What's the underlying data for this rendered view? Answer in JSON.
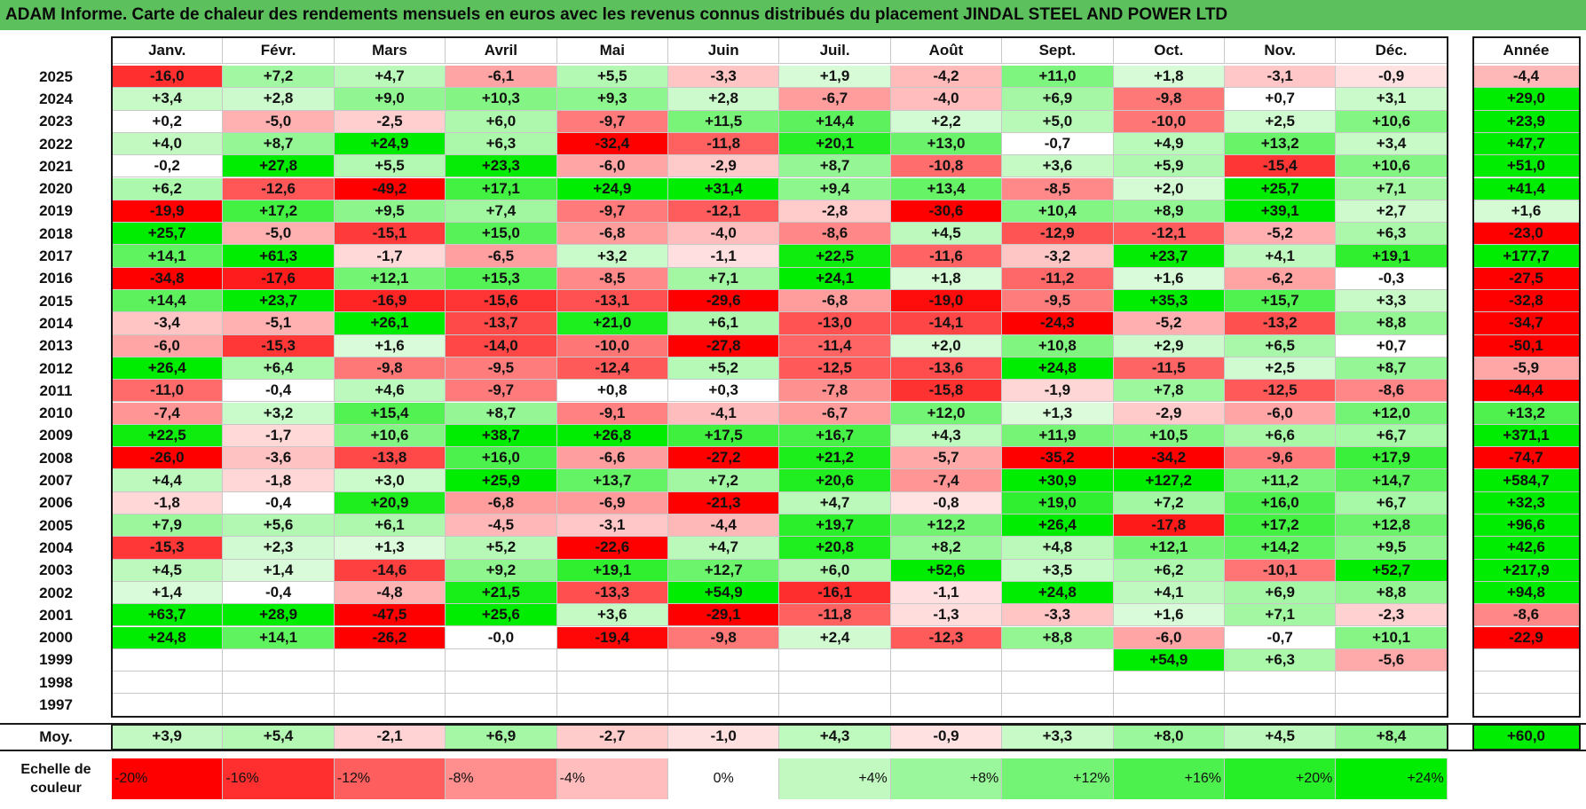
{
  "title": "ADAM Informe. Carte de chaleur des rendements mensuels en euros avec les revenus connus distribués du placement JINDAL STEEL AND POWER LTD",
  "year_header": "Année",
  "avg_label": "Moy.",
  "scale_label_line1": "Echelle de",
  "scale_label_line2": "couleur",
  "colors": {
    "title_bg": "#5cc15c",
    "strong_red": "#ff0000",
    "strong_green": "#00ee00",
    "neutral": "#ffffff"
  },
  "chart_data": {
    "type": "heatmap",
    "title": "ADAM Informe. Carte de chaleur des rendements mensuels en euros avec les revenus connus distribués du placement JINDAL STEEL AND POWER LTD",
    "columns": [
      "Janv.",
      "Févr.",
      "Mars",
      "Avril",
      "Mai",
      "Juin",
      "Juil.",
      "Août",
      "Sept.",
      "Oct.",
      "Nov.",
      "Déc."
    ],
    "rows": [
      {
        "year": "2025",
        "values": [
          "-16,0",
          "+7,2",
          "+4,7",
          "-6,1",
          "+5,5",
          "-3,3",
          "+1,9",
          "-4,2",
          "+11,0",
          "+1,8",
          "-3,1",
          "-0,9"
        ],
        "annual": "-4,4"
      },
      {
        "year": "2024",
        "values": [
          "+3,4",
          "+2,8",
          "+9,0",
          "+10,3",
          "+9,3",
          "+2,8",
          "-6,7",
          "-4,0",
          "+6,9",
          "-9,8",
          "+0,7",
          "+3,1"
        ],
        "annual": "+29,0"
      },
      {
        "year": "2023",
        "values": [
          "+0,2",
          "-5,0",
          "-2,5",
          "+6,0",
          "-9,7",
          "+11,5",
          "+14,4",
          "+2,2",
          "+5,0",
          "-10,0",
          "+2,5",
          "+10,6"
        ],
        "annual": "+23,9"
      },
      {
        "year": "2022",
        "values": [
          "+4,0",
          "+8,7",
          "+24,9",
          "+6,3",
          "-32,4",
          "-11,8",
          "+20,1",
          "+13,0",
          "-0,7",
          "+4,9",
          "+13,2",
          "+3,4"
        ],
        "annual": "+47,7"
      },
      {
        "year": "2021",
        "values": [
          "-0,2",
          "+27,8",
          "+5,5",
          "+23,3",
          "-6,0",
          "-2,9",
          "+8,7",
          "-10,8",
          "+3,6",
          "+5,9",
          "-15,4",
          "+10,6"
        ],
        "annual": "+51,0"
      },
      {
        "year": "2020",
        "values": [
          "+6,2",
          "-12,6",
          "-49,2",
          "+17,1",
          "+24,9",
          "+31,4",
          "+9,4",
          "+13,4",
          "-8,5",
          "+2,0",
          "+25,7",
          "+7,1"
        ],
        "annual": "+41,4"
      },
      {
        "year": "2019",
        "values": [
          "-19,9",
          "+17,2",
          "+9,5",
          "+7,4",
          "-9,7",
          "-12,1",
          "-2,8",
          "-30,6",
          "+10,4",
          "+8,9",
          "+39,1",
          "+2,7"
        ],
        "annual": "+1,6"
      },
      {
        "year": "2018",
        "values": [
          "+25,7",
          "-5,0",
          "-15,1",
          "+15,0",
          "-6,8",
          "-4,0",
          "-8,6",
          "+4,5",
          "-12,9",
          "-12,1",
          "-5,2",
          "+6,3"
        ],
        "annual": "-23,0"
      },
      {
        "year": "2017",
        "values": [
          "+14,1",
          "+61,3",
          "-1,7",
          "-6,5",
          "+3,2",
          "-1,1",
          "+22,5",
          "-11,6",
          "-3,2",
          "+23,7",
          "+4,1",
          "+19,1"
        ],
        "annual": "+177,7"
      },
      {
        "year": "2016",
        "values": [
          "-34,8",
          "-17,6",
          "+12,1",
          "+15,3",
          "-8,5",
          "+7,1",
          "+24,1",
          "+1,8",
          "-11,2",
          "+1,6",
          "-6,2",
          "-0,3"
        ],
        "annual": "-27,5"
      },
      {
        "year": "2015",
        "values": [
          "+14,4",
          "+23,7",
          "-16,9",
          "-15,6",
          "-13,1",
          "-29,6",
          "-6,8",
          "-19,0",
          "-9,5",
          "+35,3",
          "+15,7",
          "+3,3"
        ],
        "annual": "-32,8"
      },
      {
        "year": "2014",
        "values": [
          "-3,4",
          "-5,1",
          "+26,1",
          "-13,7",
          "+21,0",
          "+6,1",
          "-13,0",
          "-14,1",
          "-24,3",
          "-5,2",
          "-13,2",
          "+8,8"
        ],
        "annual": "-34,7"
      },
      {
        "year": "2013",
        "values": [
          "-6,0",
          "-15,3",
          "+1,6",
          "-14,0",
          "-10,0",
          "-27,8",
          "-11,4",
          "+2,0",
          "+10,8",
          "+2,9",
          "+6,5",
          "+0,7"
        ],
        "annual": "-50,1"
      },
      {
        "year": "2012",
        "values": [
          "+26,4",
          "+6,4",
          "-9,8",
          "-9,5",
          "-12,4",
          "+5,2",
          "-12,5",
          "-13,6",
          "+24,8",
          "-11,5",
          "+2,5",
          "+8,7"
        ],
        "annual": "-5,9"
      },
      {
        "year": "2011",
        "values": [
          "-11,0",
          "-0,4",
          "+4,6",
          "-9,7",
          "+0,8",
          "+0,3",
          "-7,8",
          "-15,8",
          "-1,9",
          "+7,8",
          "-12,5",
          "-8,6"
        ],
        "annual": "-44,4"
      },
      {
        "year": "2010",
        "values": [
          "-7,4",
          "+3,2",
          "+15,4",
          "+8,7",
          "-9,1",
          "-4,1",
          "-6,7",
          "+12,0",
          "+1,3",
          "-2,9",
          "-6,0",
          "+12,0"
        ],
        "annual": "+13,2"
      },
      {
        "year": "2009",
        "values": [
          "+22,5",
          "-1,7",
          "+10,6",
          "+38,7",
          "+26,8",
          "+17,5",
          "+16,7",
          "+4,3",
          "+11,9",
          "+10,5",
          "+6,6",
          "+6,7"
        ],
        "annual": "+371,1"
      },
      {
        "year": "2008",
        "values": [
          "-26,0",
          "-3,6",
          "-13,8",
          "+16,0",
          "-6,6",
          "-27,2",
          "+21,2",
          "-5,7",
          "-35,2",
          "-34,2",
          "-9,6",
          "+17,9"
        ],
        "annual": "-74,7"
      },
      {
        "year": "2007",
        "values": [
          "+4,4",
          "-1,8",
          "+3,0",
          "+25,9",
          "+13,7",
          "+7,2",
          "+20,6",
          "-7,4",
          "+30,9",
          "+127,2",
          "+11,2",
          "+14,7"
        ],
        "annual": "+584,7"
      },
      {
        "year": "2006",
        "values": [
          "-1,8",
          "-0,4",
          "+20,9",
          "-6,8",
          "-6,9",
          "-21,3",
          "+4,7",
          "-0,8",
          "+19,0",
          "+7,2",
          "+16,0",
          "+6,7"
        ],
        "annual": "+32,3"
      },
      {
        "year": "2005",
        "values": [
          "+7,9",
          "+5,6",
          "+6,1",
          "-4,5",
          "-3,1",
          "-4,4",
          "+19,7",
          "+12,2",
          "+26,4",
          "-17,8",
          "+17,2",
          "+12,8"
        ],
        "annual": "+96,6"
      },
      {
        "year": "2004",
        "values": [
          "-15,3",
          "+2,3",
          "+1,3",
          "+5,2",
          "-22,6",
          "+4,7",
          "+20,8",
          "+8,2",
          "+4,8",
          "+12,1",
          "+14,2",
          "+9,5"
        ],
        "annual": "+42,6"
      },
      {
        "year": "2003",
        "values": [
          "+4,5",
          "+1,4",
          "-14,6",
          "+9,2",
          "+19,1",
          "+12,7",
          "+6,0",
          "+52,6",
          "+3,5",
          "+6,2",
          "-10,1",
          "+52,7"
        ],
        "annual": "+217,9"
      },
      {
        "year": "2002",
        "values": [
          "+1,4",
          "-0,4",
          "-4,8",
          "+21,5",
          "-13,3",
          "+54,9",
          "-16,1",
          "-1,1",
          "+24,8",
          "+4,1",
          "+6,9",
          "+8,8"
        ],
        "annual": "+94,8"
      },
      {
        "year": "2001",
        "values": [
          "+63,7",
          "+28,9",
          "-47,5",
          "+25,6",
          "+3,6",
          "-29,1",
          "-11,8",
          "-1,3",
          "-3,3",
          "+1,6",
          "+7,1",
          "-2,3"
        ],
        "annual": "-8,6"
      },
      {
        "year": "2000",
        "values": [
          "+24,8",
          "+14,1",
          "-26,2",
          "-0,0",
          "-19,4",
          "-9,8",
          "+2,4",
          "-12,3",
          "+8,8",
          "-6,0",
          "-0,7",
          "+10,1"
        ],
        "annual": "-22,9"
      },
      {
        "year": "1999",
        "values": [
          "",
          "",
          "",
          "",
          "",
          "",
          "",
          "",
          "",
          "+54,9",
          "+6,3",
          "-5,6"
        ],
        "annual": ""
      },
      {
        "year": "1998",
        "values": [
          "",
          "",
          "",
          "",
          "",
          "",
          "",
          "",
          "",
          "",
          "",
          ""
        ],
        "annual": ""
      },
      {
        "year": "1997",
        "values": [
          "",
          "",
          "",
          "",
          "",
          "",
          "",
          "",
          "",
          "",
          "",
          ""
        ],
        "annual": ""
      }
    ],
    "average": {
      "values": [
        "+3,9",
        "+5,4",
        "-2,1",
        "+6,9",
        "-2,7",
        "-1,0",
        "+4,3",
        "-0,9",
        "+3,3",
        "+8,0",
        "+4,5",
        "+8,4"
      ],
      "annual": "+60,0"
    },
    "color_scale": [
      {
        "label": "-20%",
        "value": -20
      },
      {
        "label": "-16%",
        "value": -16
      },
      {
        "label": "-12%",
        "value": -12
      },
      {
        "label": "-8%",
        "value": -8
      },
      {
        "label": "-4%",
        "value": -4
      },
      {
        "label": "0%",
        "value": 0
      },
      {
        "label": "+4%",
        "value": 4
      },
      {
        "label": "+8%",
        "value": 8
      },
      {
        "label": "+12%",
        "value": 12
      },
      {
        "label": "+16%",
        "value": 16
      },
      {
        "label": "+20%",
        "value": 20
      },
      {
        "label": "+24%",
        "value": 24
      }
    ]
  }
}
